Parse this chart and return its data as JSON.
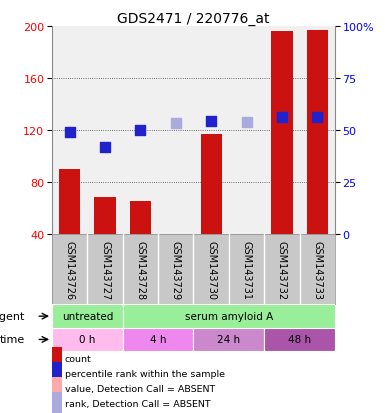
{
  "title": "GDS2471 / 220776_at",
  "samples": [
    "GSM143726",
    "GSM143727",
    "GSM143728",
    "GSM143729",
    "GSM143730",
    "GSM143731",
    "GSM143732",
    "GSM143733"
  ],
  "bar_values": [
    90,
    68,
    65,
    null,
    117,
    null,
    196,
    197
  ],
  "bar_colors": [
    "#cc1111",
    "#cc1111",
    "#cc1111",
    "#ffaaaa",
    "#cc1111",
    "#ffaaaa",
    "#cc1111",
    "#cc1111"
  ],
  "dot_values": [
    118,
    107,
    120,
    125,
    127,
    126,
    130,
    130
  ],
  "dot_colors": [
    "#2222cc",
    "#2222cc",
    "#2222cc",
    "#aaaadd",
    "#2222cc",
    "#aaaadd",
    "#2222cc",
    "#2222cc"
  ],
  "ylim_left": [
    40,
    200
  ],
  "ylim_right": [
    0,
    100
  ],
  "yticks_left": [
    40,
    80,
    120,
    160,
    200
  ],
  "yticks_right": [
    0,
    25,
    50,
    75,
    100
  ],
  "gridlines": [
    80,
    120,
    160
  ],
  "agent_spans": [
    [
      0,
      2,
      "untreated",
      "#99ee99"
    ],
    [
      2,
      8,
      "serum amyloid A",
      "#99ee99"
    ]
  ],
  "time_spans": [
    [
      0,
      2,
      "0 h",
      "#ffbbee"
    ],
    [
      2,
      4,
      "4 h",
      "#ee88ee"
    ],
    [
      4,
      6,
      "24 h",
      "#cc88cc"
    ],
    [
      6,
      8,
      "48 h",
      "#aa55aa"
    ]
  ],
  "legend_items": [
    {
      "color": "#cc1111",
      "label": "count"
    },
    {
      "color": "#2222cc",
      "label": "percentile rank within the sample"
    },
    {
      "color": "#ffaaaa",
      "label": "value, Detection Call = ABSENT"
    },
    {
      "color": "#aaaadd",
      "label": "rank, Detection Call = ABSENT"
    }
  ],
  "bar_width": 0.6,
  "bg_color": "#ffffff",
  "plot_bg": "#f0f0f0",
  "names_bg": "#c8c8c8"
}
